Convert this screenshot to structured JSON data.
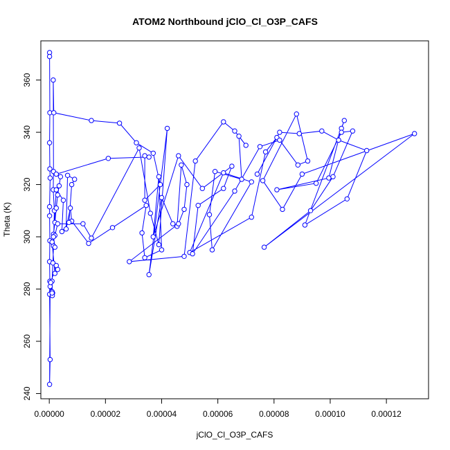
{
  "chart_data": {
    "type": "line",
    "title": "ATOM2 Northbound jClO_Cl_O3P_CAFS",
    "xlabel": "jClO_Cl_O3P_CAFS",
    "ylabel": "Theta (K)",
    "xlim": [
      -3e-06,
      0.000135
    ],
    "ylim": [
      238,
      375
    ],
    "xticks": [
      0,
      2e-05,
      4e-05,
      6e-05,
      8e-05,
      0.0001,
      0.00012
    ],
    "xtick_labels": [
      "0.00000",
      "0.00002",
      "0.00004",
      "0.00006",
      "0.00008",
      "0.00010",
      "0.00012"
    ],
    "yticks": [
      240,
      260,
      280,
      300,
      320,
      340,
      360
    ],
    "ytick_labels": [
      "240",
      "260",
      "280",
      "300",
      "320",
      "340",
      "360"
    ],
    "grid": false,
    "series_color": "#0000ff",
    "series": [
      {
        "points": [
          [
            1e-07,
            370.5
          ],
          [
            1e-07,
            369
          ],
          [
            2e-07,
            347.5
          ],
          [
            1e-07,
            336
          ],
          [
            2e-07,
            326
          ],
          [
            3e-07,
            322.5
          ],
          [
            1e-07,
            311.5
          ],
          [
            1e-07,
            308
          ],
          [
            2e-07,
            298.5
          ],
          [
            1e-07,
            290.5
          ],
          [
            2e-07,
            283
          ],
          [
            1e-07,
            278
          ],
          [
            3e-07,
            253
          ],
          [
            1e-07,
            243.5
          ],
          [
            3e-07,
            281
          ],
          [
            1.2e-06,
            278.5
          ],
          [
            1.1e-06,
            277.5
          ],
          [
            1e-06,
            283
          ],
          [
            1.3e-06,
            290
          ],
          [
            1.5e-06,
            296.5
          ],
          [
            1.8e-06,
            310
          ],
          [
            1.4e-06,
            318
          ],
          [
            1.5e-06,
            325
          ],
          [
            1.4e-06,
            360
          ],
          [
            1.6e-06,
            347.5
          ],
          [
            1.5e-05,
            344.5
          ],
          [
            2.5e-05,
            343.5
          ],
          [
            3.1e-05,
            336
          ],
          [
            3.7e-05,
            332
          ],
          [
            3.95e-05,
            320
          ],
          [
            3.4e-05,
            314
          ],
          [
            3.4e-05,
            331
          ],
          [
            3.55e-05,
            330.5
          ],
          [
            2.1e-05,
            330
          ],
          [
            2.5e-06,
            324
          ],
          [
            4e-06,
            323
          ],
          [
            3.5e-06,
            319.5
          ],
          [
            3e-06,
            316
          ],
          [
            2.5e-06,
            311
          ],
          [
            2e-06,
            305.5
          ],
          [
            1.5e-06,
            301
          ],
          [
            2e-06,
            300.5
          ],
          [
            3e-06,
            305
          ],
          [
            1.2e-05,
            305
          ],
          [
            1.5e-05,
            299.5
          ],
          [
            3.2e-05,
            334
          ],
          [
            3.6e-05,
            309
          ],
          [
            3.9e-05,
            297
          ],
          [
            4.2e-05,
            341.5
          ],
          [
            3.55e-05,
            285.5
          ],
          [
            4e-05,
            315
          ],
          [
            4.4e-05,
            305
          ],
          [
            4.55e-05,
            304
          ],
          [
            4.7e-05,
            327.5
          ],
          [
            4.9e-05,
            320
          ],
          [
            4.8e-05,
            310.5
          ],
          [
            4.6e-05,
            305
          ],
          [
            2.85e-05,
            290.5
          ],
          [
            4.8e-05,
            292.5
          ],
          [
            5.2e-05,
            329
          ],
          [
            6.2e-05,
            344
          ],
          [
            6.6e-05,
            340.5
          ],
          [
            7e-05,
            335
          ],
          [
            6.75e-05,
            338.5
          ],
          [
            6.85e-05,
            322
          ],
          [
            5.9e-05,
            325
          ],
          [
            5.7e-05,
            308.5
          ],
          [
            5.8e-05,
            295
          ],
          [
            7.2e-05,
            321
          ],
          [
            6.2e-05,
            324.5
          ],
          [
            5e-05,
            294
          ],
          [
            7.2e-05,
            307.5
          ],
          [
            7.7e-05,
            332.5
          ],
          [
            8.1e-05,
            338
          ],
          [
            7.4e-05,
            324
          ],
          [
            8.2e-05,
            340
          ],
          [
            8.9e-05,
            339.5
          ],
          [
            9.7e-05,
            340.5
          ],
          [
            0.000103,
            337
          ],
          [
            0.000113,
            333
          ],
          [
            0.000106,
            314.5
          ],
          [
            9.1e-05,
            304.5
          ],
          [
            0.000105,
            344.5
          ],
          [
            0.000104,
            341.5
          ],
          [
            9.95e-05,
            322.5
          ],
          [
            8.1e-05,
            318
          ],
          [
            9.5e-05,
            320.5
          ],
          [
            0.000104,
            340
          ],
          [
            0.000108,
            340.5
          ],
          [
            0.000101,
            323
          ],
          [
            9.3e-05,
            310
          ],
          [
            7.65e-05,
            296
          ],
          [
            0.00013,
            339.5
          ],
          [
            9e-05,
            324
          ],
          [
            8.3e-05,
            310.5
          ],
          [
            7.6e-05,
            321.5
          ],
          [
            8.8e-05,
            347
          ],
          [
            9.2e-05,
            329
          ],
          [
            8.85e-05,
            327.5
          ],
          [
            8.2e-05,
            337
          ],
          [
            7.5e-05,
            334.5
          ],
          [
            6.6e-05,
            317.5
          ],
          [
            5.1e-05,
            293.5
          ],
          [
            5.3e-05,
            312
          ],
          [
            6.2e-05,
            318.5
          ],
          [
            6.5e-05,
            327
          ],
          [
            5.45e-05,
            318.5
          ],
          [
            4.6e-05,
            331
          ],
          [
            3.7e-05,
            300
          ],
          [
            3.9e-05,
            323
          ],
          [
            4e-05,
            295
          ],
          [
            3.4e-05,
            292
          ],
          [
            3.3e-05,
            301.5
          ],
          [
            3.45e-05,
            312
          ],
          [
            2.25e-05,
            303.5
          ],
          [
            1.4e-05,
            297.5
          ],
          [
            8e-06,
            306
          ],
          [
            7.5e-06,
            311
          ],
          [
            6e-06,
            303
          ],
          [
            6.5e-06,
            323.5
          ],
          [
            9e-06,
            322
          ],
          [
            8e-06,
            320
          ],
          [
            7e-06,
            305.5
          ],
          [
            4.5e-06,
            302
          ],
          [
            5e-06,
            314
          ],
          [
            2.5e-06,
            318
          ],
          [
            1.5e-06,
            300
          ],
          [
            2e-06,
            296
          ],
          [
            1e-06,
            298
          ],
          [
            2e-06,
            286
          ],
          [
            3e-06,
            287.5
          ],
          [
            2.5e-06,
            289
          ],
          [
            5e-07,
            282.5
          ],
          [
            1e-06,
            279
          ],
          [
            1e-06,
            278.5
          ]
        ]
      }
    ]
  }
}
